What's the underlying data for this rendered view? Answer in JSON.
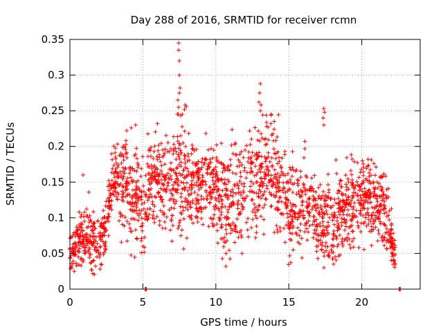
{
  "chart_data": {
    "type": "scatter",
    "title": "Day 288 of 2016, SRMTID for receiver rcmn",
    "xlabel": "GPS time / hours",
    "ylabel": "SRMTID / TECUs",
    "xlim": [
      0,
      24
    ],
    "ylim": [
      0,
      0.35
    ],
    "x_ticks": [
      0,
      5,
      10,
      15,
      20
    ],
    "x_tick_labels": [
      "0",
      "5",
      "10",
      "15",
      "20"
    ],
    "y_ticks": [
      0,
      0.05,
      0.1,
      0.15,
      0.2,
      0.25,
      0.3,
      0.35
    ],
    "y_tick_labels": [
      "0",
      "0.05",
      "0.1",
      "0.15",
      "0.2",
      "0.25",
      "0.3",
      "0.35"
    ],
    "grid": true,
    "marker": "+",
    "series_color": "#ff0000",
    "axis_markers_x": [
      5.2,
      22.6
    ],
    "points_approx_count": 2100,
    "series": [
      {
        "name": "SRMTID",
        "envelope": [
          {
            "x": 0.0,
            "y": 0.058,
            "spread": 0.014
          },
          {
            "x": 0.5,
            "y": 0.062,
            "spread": 0.018
          },
          {
            "x": 1.0,
            "y": 0.08,
            "spread": 0.025
          },
          {
            "x": 1.5,
            "y": 0.065,
            "spread": 0.02
          },
          {
            "x": 2.0,
            "y": 0.068,
            "spread": 0.018
          },
          {
            "x": 2.5,
            "y": 0.085,
            "spread": 0.02
          },
          {
            "x": 3.0,
            "y": 0.16,
            "spread": 0.025
          },
          {
            "x": 3.5,
            "y": 0.15,
            "spread": 0.03
          },
          {
            "x": 4.0,
            "y": 0.145,
            "spread": 0.035
          },
          {
            "x": 4.5,
            "y": 0.13,
            "spread": 0.035
          },
          {
            "x": 5.0,
            "y": 0.12,
            "spread": 0.035
          },
          {
            "x": 5.5,
            "y": 0.15,
            "spread": 0.03
          },
          {
            "x": 6.0,
            "y": 0.155,
            "spread": 0.03
          },
          {
            "x": 6.5,
            "y": 0.14,
            "spread": 0.035
          },
          {
            "x": 7.0,
            "y": 0.145,
            "spread": 0.035
          },
          {
            "x": 7.5,
            "y": 0.16,
            "spread": 0.04
          },
          {
            "x": 8.0,
            "y": 0.15,
            "spread": 0.035
          },
          {
            "x": 8.5,
            "y": 0.145,
            "spread": 0.03
          },
          {
            "x": 9.0,
            "y": 0.15,
            "spread": 0.03
          },
          {
            "x": 9.5,
            "y": 0.155,
            "spread": 0.03
          },
          {
            "x": 10.0,
            "y": 0.14,
            "spread": 0.035
          },
          {
            "x": 10.5,
            "y": 0.11,
            "spread": 0.035
          },
          {
            "x": 11.0,
            "y": 0.12,
            "spread": 0.035
          },
          {
            "x": 11.5,
            "y": 0.14,
            "spread": 0.035
          },
          {
            "x": 12.0,
            "y": 0.14,
            "spread": 0.035
          },
          {
            "x": 12.5,
            "y": 0.15,
            "spread": 0.035
          },
          {
            "x": 13.0,
            "y": 0.165,
            "spread": 0.035
          },
          {
            "x": 13.5,
            "y": 0.175,
            "spread": 0.035
          },
          {
            "x": 14.0,
            "y": 0.16,
            "spread": 0.035
          },
          {
            "x": 14.5,
            "y": 0.14,
            "spread": 0.035
          },
          {
            "x": 15.0,
            "y": 0.11,
            "spread": 0.03
          },
          {
            "x": 15.5,
            "y": 0.105,
            "spread": 0.03
          },
          {
            "x": 16.0,
            "y": 0.115,
            "spread": 0.03
          },
          {
            "x": 16.5,
            "y": 0.13,
            "spread": 0.035
          },
          {
            "x": 17.0,
            "y": 0.09,
            "spread": 0.025
          },
          {
            "x": 17.5,
            "y": 0.095,
            "spread": 0.03
          },
          {
            "x": 18.0,
            "y": 0.09,
            "spread": 0.03
          },
          {
            "x": 18.5,
            "y": 0.11,
            "spread": 0.03
          },
          {
            "x": 19.0,
            "y": 0.11,
            "spread": 0.03
          },
          {
            "x": 19.5,
            "y": 0.125,
            "spread": 0.03
          },
          {
            "x": 20.0,
            "y": 0.13,
            "spread": 0.03
          },
          {
            "x": 20.5,
            "y": 0.13,
            "spread": 0.03
          },
          {
            "x": 21.0,
            "y": 0.12,
            "spread": 0.03
          },
          {
            "x": 21.5,
            "y": 0.12,
            "spread": 0.03
          },
          {
            "x": 22.0,
            "y": 0.07,
            "spread": 0.02
          },
          {
            "x": 22.3,
            "y": 0.05,
            "spread": 0.015
          }
        ],
        "notable_points": [
          {
            "x": 7.45,
            "y": 0.345
          },
          {
            "x": 7.45,
            "y": 0.335
          },
          {
            "x": 7.5,
            "y": 0.32
          },
          {
            "x": 7.5,
            "y": 0.3
          },
          {
            "x": 7.55,
            "y": 0.282
          },
          {
            "x": 7.5,
            "y": 0.275
          },
          {
            "x": 7.9,
            "y": 0.258
          },
          {
            "x": 7.85,
            "y": 0.252
          },
          {
            "x": 7.7,
            "y": 0.245
          },
          {
            "x": 7.4,
            "y": 0.265
          },
          {
            "x": 7.45,
            "y": 0.255
          },
          {
            "x": 13.05,
            "y": 0.288
          },
          {
            "x": 13.0,
            "y": 0.275
          },
          {
            "x": 12.95,
            "y": 0.262
          },
          {
            "x": 13.1,
            "y": 0.258
          },
          {
            "x": 13.05,
            "y": 0.25
          },
          {
            "x": 17.4,
            "y": 0.253
          },
          {
            "x": 17.45,
            "y": 0.248
          },
          {
            "x": 17.35,
            "y": 0.24
          },
          {
            "x": 17.4,
            "y": 0.23
          },
          {
            "x": 4.5,
            "y": 0.23
          },
          {
            "x": 6.0,
            "y": 0.232
          },
          {
            "x": 13.8,
            "y": 0.245
          },
          {
            "x": 14.0,
            "y": 0.235
          },
          {
            "x": 11.3,
            "y": 0.203
          },
          {
            "x": 0.9,
            "y": 0.16
          },
          {
            "x": 0.3,
            "y": 0.025
          },
          {
            "x": 1.5,
            "y": 0.027
          },
          {
            "x": 22.3,
            "y": 0.035
          },
          {
            "x": 22.2,
            "y": 0.04
          },
          {
            "x": 15.3,
            "y": 0.055
          },
          {
            "x": 10.7,
            "y": 0.05
          },
          {
            "x": 11.8,
            "y": 0.05
          },
          {
            "x": 17.5,
            "y": 0.06
          },
          {
            "x": 18.5,
            "y": 0.048
          },
          {
            "x": 16.9,
            "y": 0.06
          },
          {
            "x": 5.0,
            "y": 0.06
          }
        ]
      }
    ]
  }
}
